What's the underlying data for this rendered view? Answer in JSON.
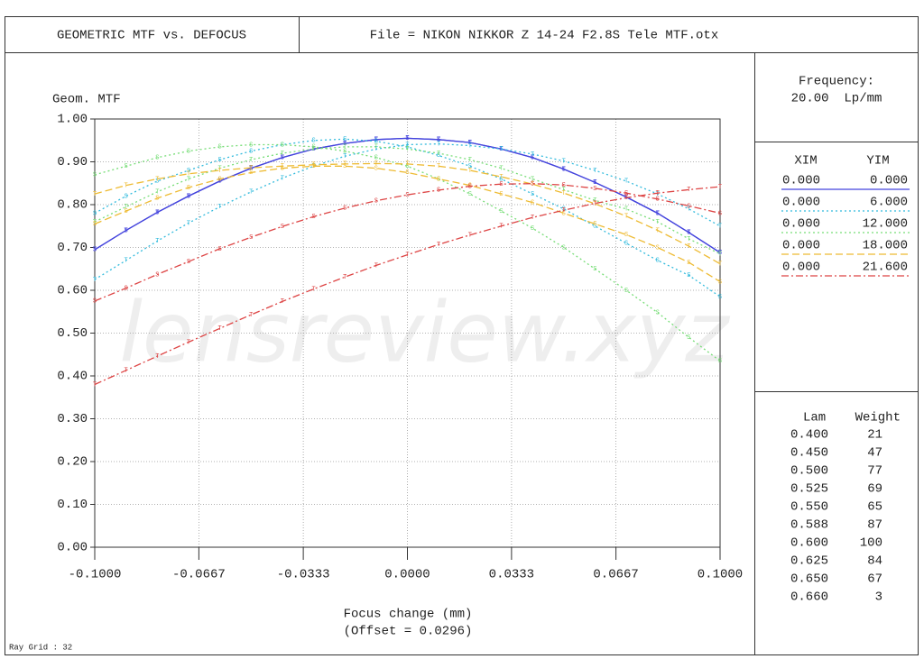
{
  "header": {
    "title": "GEOMETRIC MTF vs. DEFOCUS",
    "file": "File = NIKON NIKKOR Z 14-24 F2.8S Tele MTF.otx"
  },
  "frequency": {
    "label": "Frequency:",
    "value": "20.00  Lp/mm"
  },
  "ray_grid": "Ray Grid : 32",
  "watermark": "lensreview.xyz",
  "chart_data": {
    "type": "line",
    "y_label": "Geom. MTF",
    "x_label": "Focus change (mm)",
    "x_sublabel": "(Offset = 0.0296)",
    "xlim": [
      -0.1,
      0.1
    ],
    "ylim": [
      0,
      1
    ],
    "grid": true,
    "xticks": [
      {
        "value": -0.1,
        "label": "-0.1000"
      },
      {
        "value": -0.0667,
        "label": "-0.0667"
      },
      {
        "value": -0.0333,
        "label": "-0.0333"
      },
      {
        "value": 0,
        "label": "0.0000"
      },
      {
        "value": 0.0333,
        "label": "0.0333"
      },
      {
        "value": 0.0667,
        "label": "0.0667"
      },
      {
        "value": 0.1,
        "label": "0.1000"
      }
    ],
    "yticks": [
      {
        "value": 0,
        "label": "0.00"
      },
      {
        "value": 0.1,
        "label": "0.10"
      },
      {
        "value": 0.2,
        "label": "0.20"
      },
      {
        "value": 0.3,
        "label": "0.30"
      },
      {
        "value": 0.4,
        "label": "0.40"
      },
      {
        "value": 0.5,
        "label": "0.50"
      },
      {
        "value": 0.6,
        "label": "0.60"
      },
      {
        "value": 0.7,
        "label": "0.70"
      },
      {
        "value": 0.8,
        "label": "0.80"
      },
      {
        "value": 0.9,
        "label": "0.90"
      },
      {
        "value": 1,
        "label": "1.00"
      }
    ],
    "x": [
      -0.1,
      -0.09,
      -0.08,
      -0.07,
      -0.06,
      -0.05,
      -0.04,
      -0.03,
      -0.02,
      -0.01,
      0,
      0.01,
      0.02,
      0.03,
      0.04,
      0.05,
      0.06,
      0.07,
      0.08,
      0.09,
      0.1
    ],
    "legend_header": [
      "XIM",
      "YIM"
    ],
    "fields": [
      {
        "xim": "0.000",
        "yim": "0.000",
        "color": "#4444dd",
        "dash": "none"
      },
      {
        "xim": "0.000",
        "yim": "6.000",
        "color": "#33bbdd",
        "dash": "2,3"
      },
      {
        "xim": "0.000",
        "yim": "12.000",
        "color": "#77dd77",
        "dash": "2,3"
      },
      {
        "xim": "0.000",
        "yim": "18.000",
        "color": "#eebb33",
        "dash": "8,4"
      },
      {
        "xim": "0.000",
        "yim": "21.600",
        "color": "#dd4444",
        "dash": "8,3,2,3"
      }
    ],
    "series": [
      {
        "field": 0,
        "marker": "T",
        "values": [
          0.695,
          0.74,
          0.782,
          0.82,
          0.855,
          0.885,
          0.91,
          0.93,
          0.943,
          0.952,
          0.955,
          0.952,
          0.945,
          0.93,
          0.91,
          0.883,
          0.852,
          0.818,
          0.78,
          0.735,
          0.688
        ]
      },
      {
        "field": 0,
        "marker": "S",
        "values": [
          0.695,
          0.74,
          0.782,
          0.82,
          0.855,
          0.885,
          0.91,
          0.93,
          0.943,
          0.952,
          0.955,
          0.952,
          0.945,
          0.93,
          0.91,
          0.883,
          0.852,
          0.818,
          0.78,
          0.735,
          0.688
        ]
      },
      {
        "field": 1,
        "marker": "T",
        "values": [
          0.625,
          0.67,
          0.715,
          0.757,
          0.795,
          0.83,
          0.862,
          0.89,
          0.913,
          0.93,
          0.94,
          0.942,
          0.938,
          0.93,
          0.918,
          0.902,
          0.88,
          0.855,
          0.825,
          0.79,
          0.75
        ]
      },
      {
        "field": 1,
        "marker": "S",
        "values": [
          0.78,
          0.82,
          0.855,
          0.88,
          0.905,
          0.925,
          0.94,
          0.95,
          0.953,
          0.948,
          0.935,
          0.915,
          0.89,
          0.86,
          0.825,
          0.79,
          0.75,
          0.71,
          0.67,
          0.635,
          0.585
        ]
      },
      {
        "field": 2,
        "marker": "S",
        "values": [
          0.87,
          0.89,
          0.91,
          0.925,
          0.935,
          0.94,
          0.94,
          0.935,
          0.925,
          0.91,
          0.89,
          0.86,
          0.825,
          0.785,
          0.745,
          0.7,
          0.65,
          0.6,
          0.548,
          0.49,
          0.435
        ]
      },
      {
        "field": 2,
        "marker": "T",
        "values": [
          0.76,
          0.795,
          0.83,
          0.86,
          0.885,
          0.905,
          0.92,
          0.93,
          0.935,
          0.935,
          0.93,
          0.92,
          0.905,
          0.885,
          0.86,
          0.835,
          0.81,
          0.79,
          0.76,
          0.72,
          0.685
        ]
      },
      {
        "field": 3,
        "marker": "T",
        "values": [
          0.825,
          0.845,
          0.86,
          0.872,
          0.88,
          0.886,
          0.89,
          0.893,
          0.895,
          0.896,
          0.895,
          0.89,
          0.88,
          0.865,
          0.848,
          0.827,
          0.802,
          0.773,
          0.74,
          0.703,
          0.662
        ]
      },
      {
        "field": 3,
        "marker": "S",
        "values": [
          0.755,
          0.785,
          0.815,
          0.84,
          0.86,
          0.875,
          0.885,
          0.89,
          0.89,
          0.885,
          0.875,
          0.86,
          0.845,
          0.825,
          0.805,
          0.78,
          0.755,
          0.73,
          0.7,
          0.665,
          0.62
        ]
      },
      {
        "field": 4,
        "marker": "S",
        "values": [
          0.575,
          0.605,
          0.637,
          0.667,
          0.697,
          0.724,
          0.749,
          0.772,
          0.792,
          0.809,
          0.823,
          0.834,
          0.843,
          0.848,
          0.849,
          0.846,
          0.838,
          0.827,
          0.813,
          0.797,
          0.78
        ]
      },
      {
        "field": 4,
        "marker": "T",
        "values": [
          0.38,
          0.413,
          0.446,
          0.479,
          0.511,
          0.543,
          0.574,
          0.603,
          0.631,
          0.658,
          0.683,
          0.707,
          0.729,
          0.75,
          0.77,
          0.787,
          0.803,
          0.816,
          0.827,
          0.835,
          0.842
        ]
      }
    ]
  },
  "wavelengths": {
    "header": [
      "Lam",
      "Weight"
    ],
    "rows": [
      [
        "0.400",
        "21"
      ],
      [
        "0.450",
        "47"
      ],
      [
        "0.500",
        "77"
      ],
      [
        "0.525",
        "69"
      ],
      [
        "0.550",
        "65"
      ],
      [
        "0.588",
        "87"
      ],
      [
        "0.600",
        "100"
      ],
      [
        "0.625",
        "84"
      ],
      [
        "0.650",
        "67"
      ],
      [
        "0.660",
        "3"
      ]
    ]
  }
}
